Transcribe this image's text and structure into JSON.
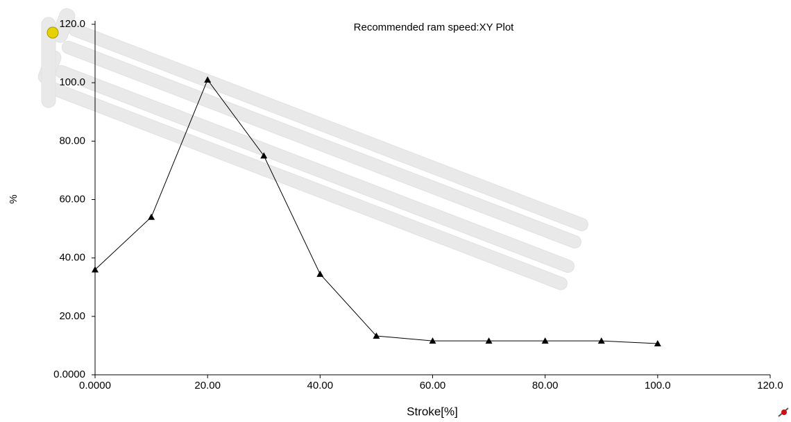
{
  "chart_data": {
    "type": "line",
    "title": "Recommended ram speed:XY Plot",
    "x_label": "Stroke[%]",
    "y_label": "%",
    "x": [
      0,
      10,
      20,
      30,
      40,
      50,
      60,
      70,
      80,
      90,
      100
    ],
    "series": [
      {
        "color": "#000000",
        "values": [
          36,
          54,
          101,
          75,
          34.5,
          13.3,
          11.6,
          11.6,
          11.6,
          11.6,
          10.7
        ]
      }
    ],
    "xlim": [
      0,
      120
    ],
    "ylim": [
      0,
      120
    ],
    "xticks": [
      {
        "value": 0,
        "label": "0.0000"
      },
      {
        "value": 20,
        "label": "20.00"
      },
      {
        "value": 40,
        "label": "40.00"
      },
      {
        "value": 60,
        "label": "60.00"
      },
      {
        "value": 80,
        "label": "80.00"
      },
      {
        "value": 100,
        "label": "100.0"
      },
      {
        "value": 120,
        "label": "120.0"
      }
    ],
    "yticks": [
      {
        "value": 0,
        "label": "0.0000"
      },
      {
        "value": 20,
        "label": "20.00"
      },
      {
        "value": 40,
        "label": "40.00"
      },
      {
        "value": 60,
        "label": "60.00"
      },
      {
        "value": 80,
        "label": "80.00"
      },
      {
        "value": 100,
        "label": "100.0"
      },
      {
        "value": 120,
        "label": "120.0"
      }
    ],
    "grid": false
  }
}
